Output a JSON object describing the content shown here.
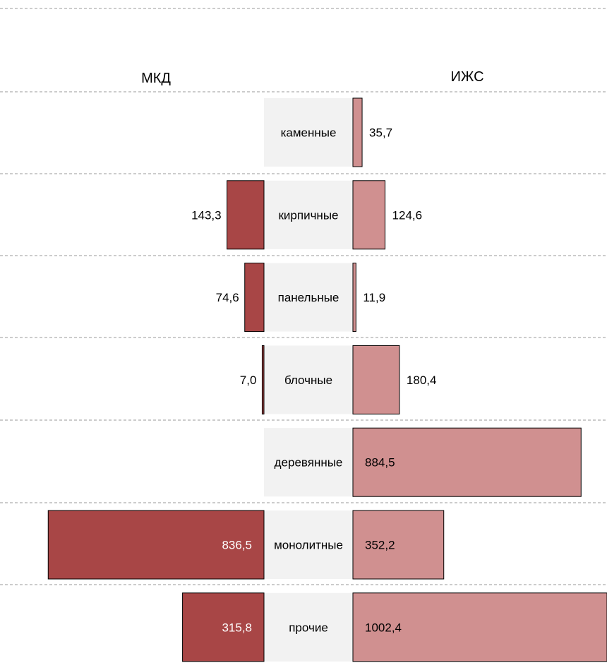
{
  "chart_data": {
    "type": "bar",
    "orientation": "horizontal-butterfly",
    "left_header": "МКД",
    "right_header": "ИЖС",
    "categories": [
      "каменные",
      "кирпичные",
      "панельные",
      "блочные",
      "деревянные",
      "монолитные",
      "прочие"
    ],
    "series": [
      {
        "name": "МКД",
        "side": "left",
        "color": "#A84646",
        "values": [
          null,
          143.3,
          74.6,
          7.0,
          null,
          836.5,
          315.8
        ],
        "labels": [
          "",
          "143,3",
          "74,6",
          "7,0",
          "",
          "836,5",
          "315,8"
        ]
      },
      {
        "name": "ИЖС",
        "side": "right",
        "color": "#D09090",
        "values": [
          35.7,
          124.6,
          11.9,
          180.4,
          884.5,
          352.2,
          1002.4
        ],
        "labels": [
          "35,7",
          "124,6",
          "11,9",
          "180,4",
          "884,5",
          "352,2",
          "1002,4"
        ]
      }
    ],
    "category_box_color": "#F2F2F2",
    "grid": "dashed horizontal separators",
    "legend": "none"
  }
}
